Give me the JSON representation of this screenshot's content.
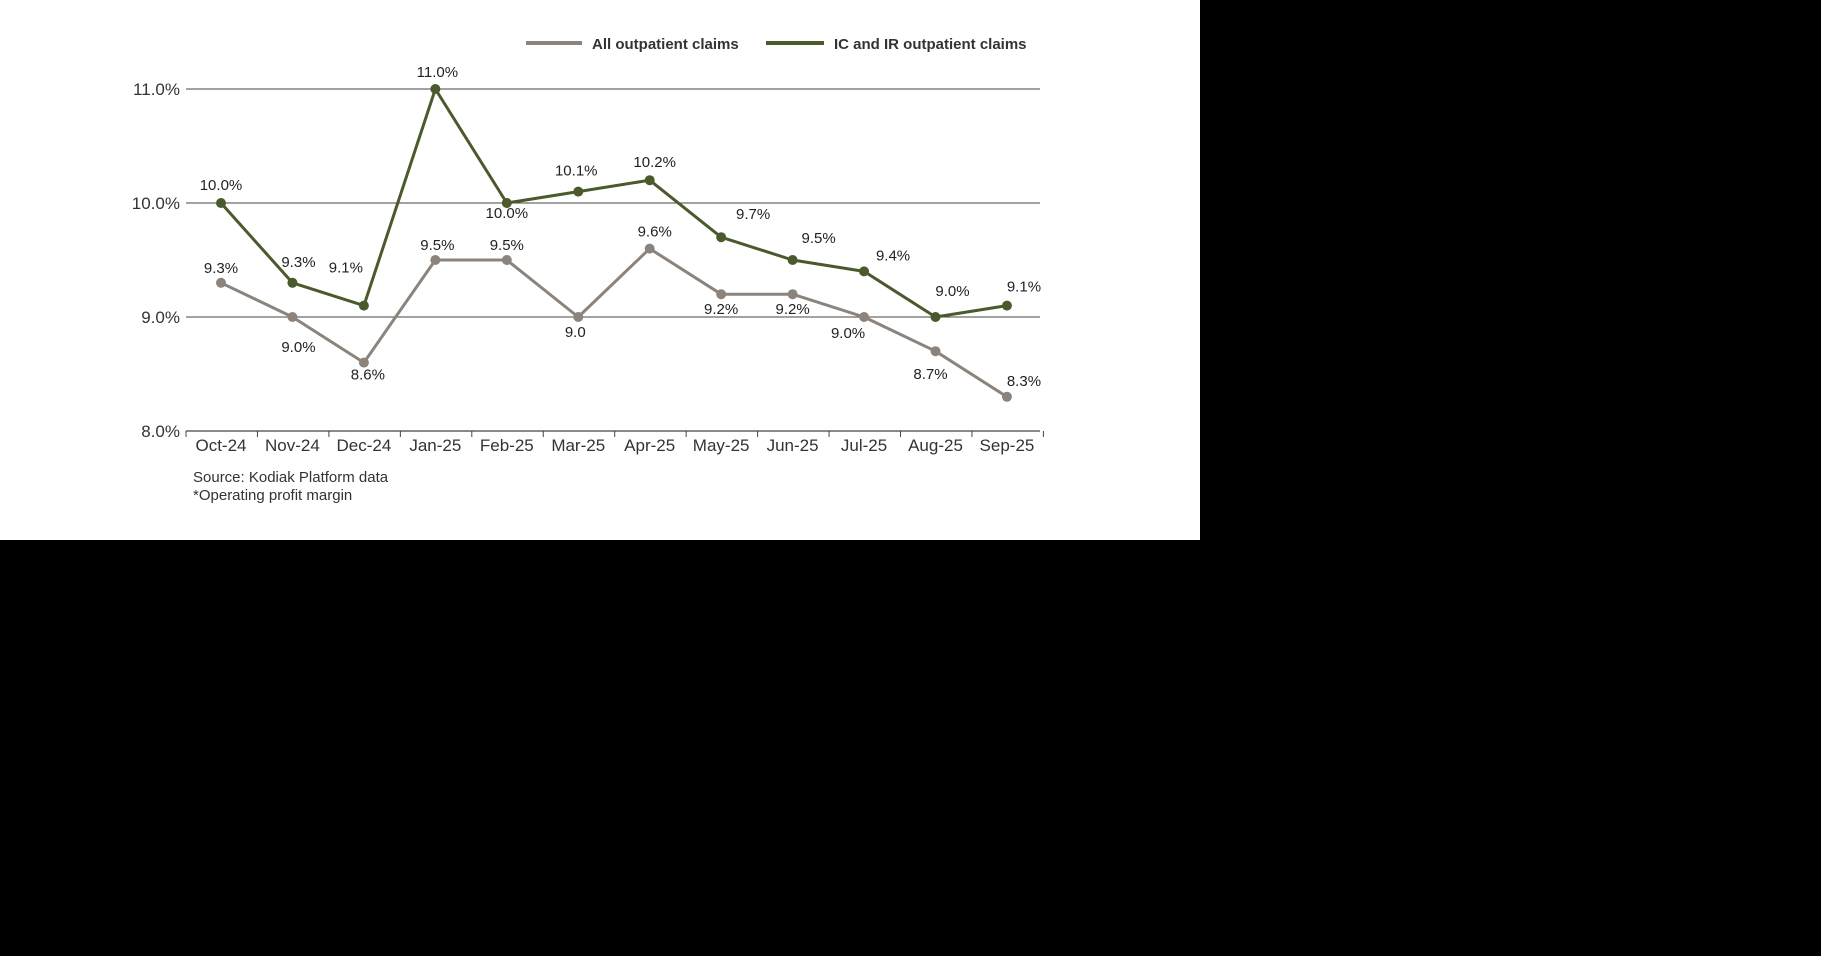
{
  "colors": {
    "background": "#ffffff",
    "page": "#000000",
    "all_outpatient": "#8c847c",
    "ic_ir_outpatient": "#4a5a2c",
    "gridline": "#444444",
    "text": "#333333"
  },
  "chart_data": {
    "type": "line",
    "title": "",
    "xlabel": "",
    "ylabel": "",
    "categories": [
      "Oct-24",
      "Nov-24",
      "Dec-24",
      "Jan-25",
      "Feb-25",
      "Mar-25",
      "Apr-25",
      "May-25",
      "Jun-25",
      "Jul-25",
      "Aug-25",
      "Sep-25"
    ],
    "ylim": [
      8.0,
      11.0
    ],
    "yticks": [
      8.0,
      9.0,
      10.0,
      11.0
    ],
    "ytick_labels": [
      "8.0%",
      "9.0%",
      "10.0%",
      "11.0%"
    ],
    "grid": "horizontal",
    "legend_position": "top-right",
    "series": [
      {
        "name": "All outpatient claims",
        "color": "#8c847c",
        "values": [
          9.3,
          9.0,
          8.6,
          9.5,
          9.5,
          9.0,
          9.6,
          9.2,
          9.2,
          9.0,
          8.7,
          8.3
        ],
        "labels": [
          "9.3%",
          "9.0%",
          "8.6%",
          "9.5%",
          "9.5%",
          "9.0",
          "9.6%",
          "9.2%",
          "9.2%",
          "9.0%",
          "8.7%",
          "8.3%"
        ]
      },
      {
        "name": "IC and IR outpatient claims",
        "color": "#4a5a2c",
        "values": [
          10.0,
          9.3,
          9.1,
          11.0,
          10.0,
          10.1,
          10.2,
          9.7,
          9.5,
          9.4,
          9.0,
          9.1
        ],
        "labels": [
          "10.0%",
          "9.3%",
          "9.1%",
          "11.0%",
          "10.0%",
          "10.1%",
          "10.2%",
          "9.7%",
          "9.5%",
          "9.4%",
          "9.0%",
          "9.1%"
        ]
      }
    ]
  },
  "notes": {
    "source": "Source: Kodiak Platform data",
    "footnote": "*Operating profit margin"
  }
}
